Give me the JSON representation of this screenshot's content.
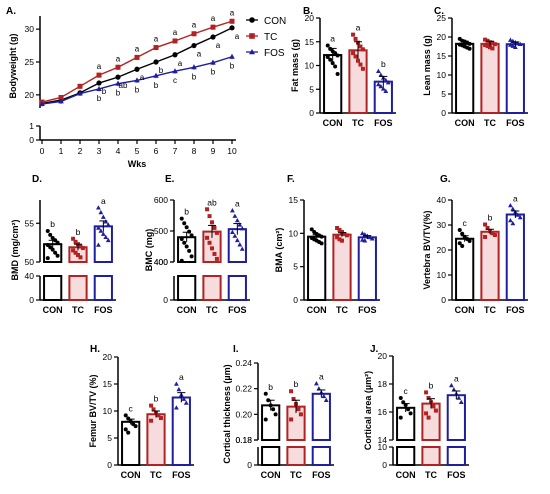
{
  "figure": {
    "bar_colors": {
      "CON": "#000000",
      "TC": "#b22222",
      "FOS": "#1f1f9e"
    },
    "bar_fills": {
      "CON": "#ffffff",
      "TC": "#f6dcdc",
      "FOS": "#ffffff"
    }
  },
  "chart_data": [
    {
      "panel": "A.",
      "type": "line",
      "xlabel": "Wks",
      "ylabel": "Bodyweight (g)",
      "x": [
        0,
        1,
        2,
        3,
        4,
        5,
        6,
        7,
        8,
        9,
        10
      ],
      "xlim": [
        0,
        10
      ],
      "ylim_upper": [
        18,
        32
      ],
      "ylim_lower": [
        0,
        1
      ],
      "yticks_upper": [
        20,
        25,
        30
      ],
      "yticks_lower": [
        0,
        1
      ],
      "legend": [
        "CON",
        "TC",
        "FOS"
      ],
      "legend_position": "top-right",
      "series": [
        {
          "name": "CON",
          "color": "#000000",
          "marker": "circle",
          "values": [
            18.7,
            19.2,
            20.3,
            21.8,
            22.7,
            23.9,
            25.0,
            26.1,
            27.5,
            28.8,
            30.2
          ]
        },
        {
          "name": "TC",
          "color": "#b22222",
          "marker": "square",
          "values": [
            18.9,
            19.6,
            21.3,
            23.0,
            24.2,
            25.7,
            27.2,
            28.2,
            29.3,
            30.3,
            31.2
          ]
        },
        {
          "name": "FOS",
          "color": "#1f1f9e",
          "marker": "triangle",
          "values": [
            18.6,
            19.0,
            20.2,
            20.9,
            21.7,
            22.2,
            22.9,
            23.6,
            24.2,
            24.9,
            25.8
          ]
        }
      ],
      "annotations": [
        {
          "x": 3,
          "series": "CON",
          "text": "b"
        },
        {
          "x": 3,
          "series": "TC",
          "text": "a"
        },
        {
          "x": 3,
          "series": "FOS",
          "text": "b"
        },
        {
          "x": 4,
          "series": "CON",
          "text": "ab"
        },
        {
          "x": 4,
          "series": "TC",
          "text": "a"
        },
        {
          "x": 4,
          "series": "FOS",
          "text": "b"
        },
        {
          "x": 5,
          "series": "CON",
          "text": "a"
        },
        {
          "x": 5,
          "series": "TC",
          "text": "a"
        },
        {
          "x": 5,
          "series": "FOS",
          "text": "b"
        },
        {
          "x": 6,
          "series": "CON",
          "text": "b"
        },
        {
          "x": 6,
          "series": "TC",
          "text": "a"
        },
        {
          "x": 6,
          "series": "FOS",
          "text": "b"
        },
        {
          "x": 7,
          "series": "CON",
          "text": "a"
        },
        {
          "x": 7,
          "series": "TC",
          "text": "a"
        },
        {
          "x": 7,
          "series": "FOS",
          "text": "c"
        },
        {
          "x": 8,
          "series": "CON",
          "text": "a"
        },
        {
          "x": 8,
          "series": "TC",
          "text": "a"
        },
        {
          "x": 8,
          "series": "FOS",
          "text": "b"
        },
        {
          "x": 9,
          "series": "CON",
          "text": "a"
        },
        {
          "x": 9,
          "series": "TC",
          "text": "a"
        },
        {
          "x": 9,
          "series": "FOS",
          "text": "b"
        },
        {
          "x": 10,
          "series": "CON",
          "text": "a"
        },
        {
          "x": 10,
          "series": "TC",
          "text": "a"
        },
        {
          "x": 10,
          "series": "FOS",
          "text": "b"
        }
      ]
    },
    {
      "panel": "B.",
      "type": "bar",
      "ylabel": "Fat mass (g)",
      "categories": [
        "CON",
        "TC",
        "FOS"
      ],
      "values": [
        12.2,
        13.2,
        6.6
      ],
      "errors": [
        1.4,
        1.8,
        1.1
      ],
      "letters": [
        "a",
        "a",
        "b"
      ],
      "ylim": [
        0,
        20
      ],
      "yticks": [
        0,
        5,
        10,
        15,
        20
      ],
      "points": [
        [
          14.2,
          13.5,
          13.0,
          12.6,
          12.1,
          11.8,
          11.2,
          10.5,
          9.8,
          8.2
        ],
        [
          16.5,
          15.6,
          14.8,
          14.0,
          13.4,
          12.6,
          11.9,
          11.0,
          10.2,
          9.3
        ],
        [
          8.8,
          8.0,
          7.4,
          6.9,
          6.4,
          6.0,
          5.6,
          5.1,
          4.6
        ]
      ]
    },
    {
      "panel": "C.",
      "type": "bar",
      "ylabel": "Lean mass (g)",
      "categories": [
        "CON",
        "TC",
        "FOS"
      ],
      "values": [
        18.2,
        18.2,
        18.1
      ],
      "errors": [
        0.7,
        0.7,
        0.6
      ],
      "letters": [
        "",
        "",
        ""
      ],
      "ylim": [
        0,
        25
      ],
      "yticks": [
        0,
        5,
        10,
        15,
        20,
        25
      ],
      "points": [
        [
          19.5,
          19.0,
          18.8,
          18.5,
          18.2,
          18.0,
          17.8,
          17.5,
          17.2,
          16.9
        ],
        [
          19.3,
          19.0,
          18.6,
          18.4,
          18.1,
          17.9,
          17.6,
          17.3,
          17.0
        ],
        [
          19.2,
          18.9,
          18.6,
          18.3,
          18.1,
          17.9,
          17.6,
          17.3
        ]
      ]
    },
    {
      "panel": "D.",
      "type": "bar",
      "ylabel": "BMD (mg/cm²)",
      "categories": [
        "CON",
        "TC",
        "FOS"
      ],
      "values": [
        52.3,
        51.9,
        54.6
      ],
      "errors": [
        0.5,
        0.4,
        0.7
      ],
      "letters": [
        "b",
        "b",
        "a"
      ],
      "ylim_upper": [
        50,
        58
      ],
      "ylim_lower": [
        0,
        40
      ],
      "yticks_upper": [
        50,
        55
      ],
      "yticks_lower": [
        0,
        40
      ],
      "points": [
        [
          54.0,
          53.5,
          53.1,
          52.8,
          52.5,
          52.2,
          51.9,
          51.6,
          51.2,
          50.8,
          50.5
        ],
        [
          53.0,
          52.6,
          52.3,
          52.0,
          51.8,
          51.5,
          51.2,
          50.9,
          50.6
        ],
        [
          57.0,
          56.4,
          55.8,
          55.2,
          54.8,
          54.4,
          54.0,
          53.6,
          53.2,
          52.8,
          52.2
        ]
      ]
    },
    {
      "panel": "E.",
      "type": "bar",
      "ylabel": "BMC (mg)",
      "categories": [
        "CON",
        "TC",
        "FOS"
      ],
      "values": [
        480,
        498,
        506
      ],
      "errors": [
        16,
        20,
        18
      ],
      "letters": [
        "b",
        "ab",
        "a"
      ],
      "ylim_upper": [
        400,
        600
      ],
      "ylim_lower": [
        0,
        400
      ],
      "yticks_upper": [
        400,
        500,
        600
      ],
      "yticks_lower": [
        0,
        400
      ],
      "points": [
        [
          540,
          525,
          512,
          498,
          486,
          474,
          462,
          450,
          436,
          418,
          404
        ],
        [
          570,
          548,
          528,
          510,
          494,
          478,
          462,
          444,
          426,
          410
        ],
        [
          566,
          548,
          534,
          520,
          508,
          496,
          484,
          470,
          456,
          442
        ]
      ]
    },
    {
      "panel": "F.",
      "type": "bar",
      "ylabel": "BMA (cm²)",
      "categories": [
        "CON",
        "TC",
        "FOS"
      ],
      "values": [
        9.5,
        9.8,
        9.4
      ],
      "errors": [
        0.3,
        0.3,
        0.25
      ],
      "letters": [
        "",
        "",
        ""
      ],
      "ylim": [
        0,
        15
      ],
      "yticks": [
        0,
        5,
        10,
        15
      ],
      "points": [
        [
          10.6,
          10.2,
          9.9,
          9.7,
          9.5,
          9.3,
          9.1,
          8.9,
          8.7,
          8.5
        ],
        [
          10.8,
          10.5,
          10.2,
          9.9,
          9.7,
          9.4,
          9.1,
          8.9
        ],
        [
          10.0,
          9.8,
          9.6,
          9.4,
          9.2,
          9.0,
          8.9
        ]
      ]
    },
    {
      "panel": "G.",
      "type": "bar",
      "ylabel": "Vertebra BV/TV(%)",
      "categories": [
        "CON",
        "TC",
        "FOS"
      ],
      "values": [
        24.5,
        27.3,
        34.2
      ],
      "errors": [
        1.2,
        1.0,
        1.4
      ],
      "letters": [
        "c",
        "b",
        "a"
      ],
      "ylim": [
        0,
        40
      ],
      "yticks": [
        0,
        10,
        20,
        30,
        40
      ],
      "points": [
        [
          28.0,
          26.5,
          25.3,
          24.4,
          23.6,
          22.7,
          21.6
        ],
        [
          30.2,
          28.8,
          27.6,
          26.7,
          26.0,
          25.2
        ],
        [
          37.8,
          36.4,
          35.1,
          34.0,
          33.0,
          31.8,
          30.6
        ]
      ]
    },
    {
      "panel": "H.",
      "type": "bar",
      "ylabel": "Femur BV/TV (%)",
      "categories": [
        "CON",
        "TC",
        "FOS"
      ],
      "values": [
        8.0,
        9.4,
        12.5
      ],
      "errors": [
        0.5,
        0.6,
        0.9
      ],
      "letters": [
        "c",
        "b",
        "a"
      ],
      "ylim": [
        0,
        20
      ],
      "yticks": [
        0,
        5,
        10,
        15,
        20
      ],
      "points": [
        [
          9.2,
          8.6,
          8.1,
          7.6,
          7.2,
          6.6,
          6.0
        ],
        [
          11.0,
          10.3,
          9.7,
          9.2,
          8.7,
          8.2
        ],
        [
          15.0,
          14.0,
          13.0,
          12.2,
          11.5,
          10.6
        ]
      ]
    },
    {
      "panel": "I.",
      "type": "bar",
      "ylabel": "Cortical thickness (µm)",
      "categories": [
        "CON",
        "TC",
        "FOS"
      ],
      "values": [
        0.207,
        0.206,
        0.216
      ],
      "errors": [
        0.004,
        0.005,
        0.003
      ],
      "letters": [
        "b",
        "b",
        "a"
      ],
      "ylim_upper": [
        0.18,
        0.24
      ],
      "ylim_lower": [
        0,
        0.18
      ],
      "yticks_upper": [
        0.18,
        0.2,
        0.22,
        0.24
      ],
      "yticks_lower": [
        0,
        0.18
      ],
      "points": [
        [
          0.216,
          0.211,
          0.207,
          0.204,
          0.2,
          0.196
        ],
        [
          0.218,
          0.212,
          0.208,
          0.204,
          0.2,
          0.196
        ],
        [
          0.224,
          0.22,
          0.217,
          0.214,
          0.211
        ]
      ]
    },
    {
      "panel": "J.",
      "type": "bar",
      "ylabel": "Cortical area (µm²)",
      "categories": [
        "CON",
        "TC",
        "FOS"
      ],
      "values": [
        16.3,
        16.6,
        17.2
      ],
      "errors": [
        0.3,
        0.35,
        0.3
      ],
      "letters": [
        "c",
        "b",
        "a"
      ],
      "ylim_upper": [
        14,
        20
      ],
      "ylim_lower": [
        0,
        10
      ],
      "yticks_upper": [
        14,
        16,
        18,
        20
      ],
      "yticks_lower": [
        0,
        10
      ],
      "points": [
        [
          17.0,
          16.7,
          16.5,
          16.2,
          15.9,
          15.6
        ],
        [
          17.4,
          17.0,
          16.7,
          16.4,
          16.1,
          15.9,
          15.6
        ],
        [
          17.9,
          17.6,
          17.3,
          17.0,
          16.7
        ]
      ]
    }
  ]
}
